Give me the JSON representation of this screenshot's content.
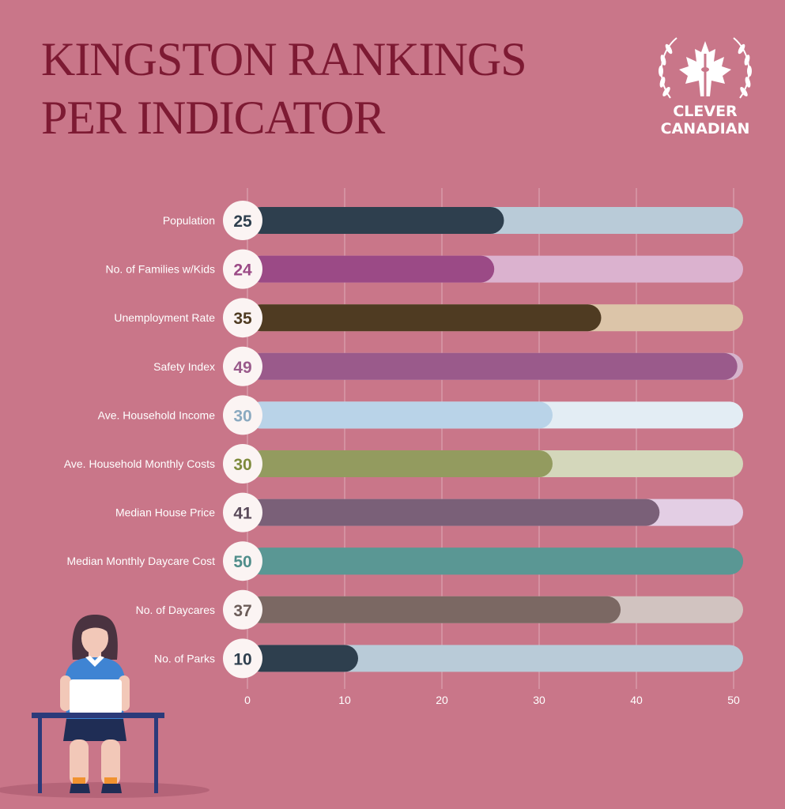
{
  "title": {
    "line1": "KINGSTON RANKINGS",
    "line2": "PER INDICATOR"
  },
  "logo": {
    "line1": "CLEVER",
    "line2": "CANADIAN",
    "icon": "maple-leaf-cn-tower-laurel-icon"
  },
  "colors": {
    "background": "#c97689",
    "title": "#7d1a33",
    "label": "#ffffff",
    "bubble": "#fbf4f3"
  },
  "chart_data": {
    "type": "bar",
    "orientation": "horizontal",
    "title": "KINGSTON RANKINGS PER INDICATOR",
    "xlabel": "",
    "ylabel": "",
    "xlim": [
      0,
      50
    ],
    "xticks": [
      0,
      10,
      20,
      30,
      40,
      50
    ],
    "grid": true,
    "categories": [
      "Population",
      "No. of Families w/Kids",
      "Unemployment Rate",
      "Safety Index",
      "Ave. Household Income",
      "Ave. Household Monthly Costs",
      "Median House Price",
      "Median Monthly Daycare Cost",
      "No. of Daycares",
      "No. of Parks"
    ],
    "values": [
      25,
      24,
      35,
      49,
      30,
      30,
      41,
      50,
      37,
      10
    ],
    "value_labels": [
      "25",
      "24",
      "35",
      "49",
      "30",
      "30",
      "41",
      "50",
      "37",
      "10"
    ],
    "bar_colors": [
      "#2e3f4e",
      "#9b4a86",
      "#4f3b22",
      "#9a5a8b",
      "#b9d3e8",
      "#939b5f",
      "#7a6078",
      "#5a9794",
      "#7b6863",
      "#2e3f4e"
    ],
    "track_colors": [
      "#b9cbd8",
      "#dbb2cf",
      "#dcc5a9",
      "#d6b4cc",
      "#e3edf4",
      "#d4d7bb",
      "#e3cee4",
      "#5a9794",
      "#d1c3c0",
      "#b9cbd8"
    ],
    "label_colors": [
      "#2e3f4e",
      "#9b4a86",
      "#4f3b22",
      "#9a5a8b",
      "#8aa9c0",
      "#7e8a3c",
      "#5a4a5a",
      "#4f8d8a",
      "#6b5c58",
      "#2e3f4e"
    ]
  }
}
